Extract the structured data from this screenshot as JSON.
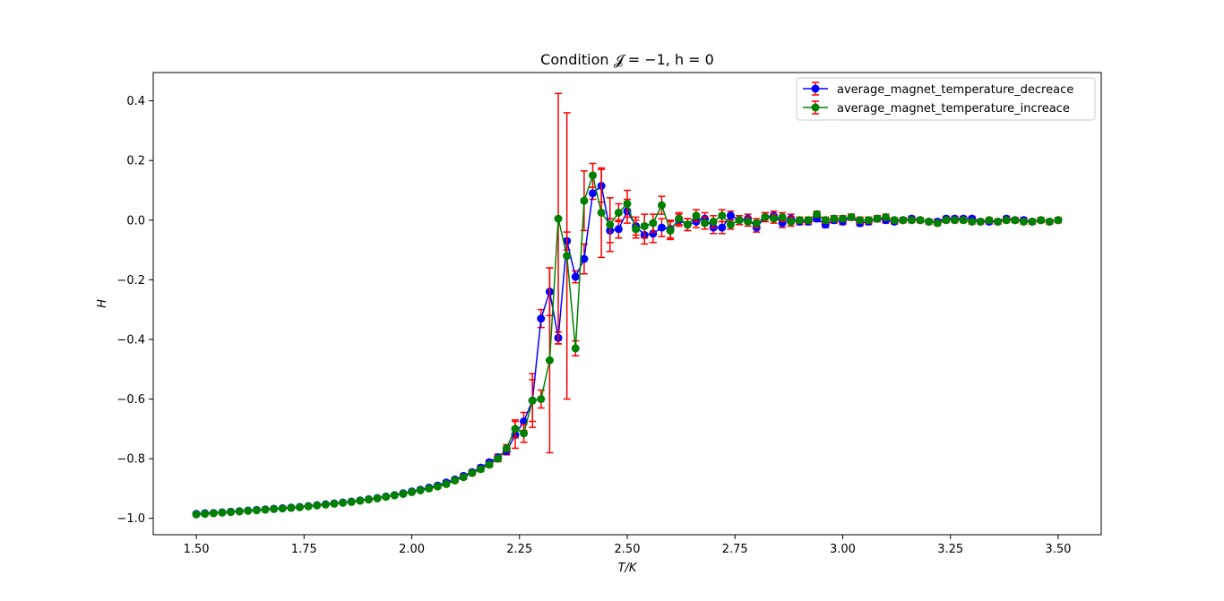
{
  "chart_data": {
    "type": "line",
    "title": "Condition 𝓙 = −1, h = 0",
    "xlabel": "T/K",
    "ylabel": "H",
    "xlim": [
      1.4,
      3.6
    ],
    "ylim": [
      -1.055,
      0.495
    ],
    "xticks": [
      "1.50",
      "1.75",
      "2.00",
      "2.25",
      "2.50",
      "2.75",
      "3.00",
      "3.25",
      "3.50"
    ],
    "xtick_values": [
      1.5,
      1.75,
      2.0,
      2.25,
      2.5,
      2.75,
      3.0,
      3.25,
      3.5
    ],
    "yticks": [
      "−1.0",
      "−0.8",
      "−0.6",
      "−0.4",
      "−0.2",
      "0.0",
      "0.2",
      "0.4"
    ],
    "ytick_values": [
      -1.0,
      -0.8,
      -0.6,
      -0.4,
      -0.2,
      0.0,
      0.2,
      0.4
    ],
    "grid": false,
    "legend_position": "top-right",
    "x": [
      1.5,
      1.52,
      1.54,
      1.56,
      1.58,
      1.6,
      1.62,
      1.64,
      1.66,
      1.68,
      1.7,
      1.72,
      1.74,
      1.76,
      1.78,
      1.8,
      1.82,
      1.84,
      1.86,
      1.88,
      1.9,
      1.92,
      1.94,
      1.96,
      1.98,
      2.0,
      2.02,
      2.04,
      2.06,
      2.08,
      2.1,
      2.12,
      2.14,
      2.16,
      2.18,
      2.2,
      2.22,
      2.24,
      2.26,
      2.28,
      2.3,
      2.32,
      2.34,
      2.36,
      2.38,
      2.4,
      2.42,
      2.44,
      2.46,
      2.48,
      2.5,
      2.52,
      2.54,
      2.56,
      2.58,
      2.6,
      2.62,
      2.64,
      2.66,
      2.68,
      2.7,
      2.72,
      2.74,
      2.76,
      2.78,
      2.8,
      2.82,
      2.84,
      2.86,
      2.88,
      2.9,
      2.92,
      2.94,
      2.96,
      2.98,
      3.0,
      3.02,
      3.04,
      3.06,
      3.08,
      3.1,
      3.12,
      3.14,
      3.16,
      3.18,
      3.2,
      3.22,
      3.24,
      3.26,
      3.28,
      3.3,
      3.32,
      3.34,
      3.36,
      3.38,
      3.4,
      3.42,
      3.44,
      3.46,
      3.48,
      3.5
    ],
    "series": [
      {
        "name": "average_magnet_temperature_decreace",
        "color": "#0000ff",
        "values": [
          -0.985,
          -0.983,
          -0.982,
          -0.98,
          -0.978,
          -0.976,
          -0.974,
          -0.972,
          -0.97,
          -0.968,
          -0.966,
          -0.964,
          -0.962,
          -0.959,
          -0.956,
          -0.953,
          -0.95,
          -0.947,
          -0.944,
          -0.94,
          -0.936,
          -0.932,
          -0.927,
          -0.922,
          -0.916,
          -0.91,
          -0.904,
          -0.897,
          -0.89,
          -0.88,
          -0.87,
          -0.858,
          -0.845,
          -0.83,
          -0.812,
          -0.795,
          -0.775,
          -0.72,
          -0.675,
          -0.605,
          -0.33,
          -0.24,
          -0.395,
          -0.07,
          -0.19,
          -0.13,
          0.09,
          0.115,
          -0.035,
          -0.03,
          0.03,
          -0.02,
          -0.05,
          -0.045,
          -0.025,
          -0.03,
          0.0,
          -0.015,
          -0.005,
          0.005,
          -0.025,
          -0.025,
          0.015,
          0.0,
          0.005,
          -0.025,
          0.01,
          0.015,
          -0.01,
          0.005,
          -0.005,
          -0.005,
          0.005,
          -0.015,
          0.0,
          -0.005,
          0.01,
          -0.01,
          -0.005,
          0.005,
          0.0,
          -0.005,
          0.0,
          0.005,
          0.0,
          -0.005,
          -0.005,
          0.005,
          0.005,
          0.005,
          0.005,
          -0.005,
          -0.005,
          -0.005,
          0.005,
          0.0,
          0.0,
          -0.005,
          0.0,
          -0.005,
          0.0
        ],
        "errors": [
          0.004,
          0.004,
          0.004,
          0.004,
          0.004,
          0.004,
          0.004,
          0.004,
          0.004,
          0.004,
          0.004,
          0.004,
          0.004,
          0.004,
          0.004,
          0.004,
          0.004,
          0.004,
          0.004,
          0.004,
          0.004,
          0.004,
          0.004,
          0.004,
          0.005,
          0.005,
          0.005,
          0.005,
          0.006,
          0.006,
          0.006,
          0.007,
          0.007,
          0.008,
          0.008,
          0.01,
          0.012,
          0.045,
          0.03,
          0.09,
          0.03,
          0.08,
          0.02,
          0.03,
          0.02,
          0.05,
          0.02,
          0.055,
          0.04,
          0.03,
          0.04,
          0.03,
          0.03,
          0.03,
          0.03,
          0.03,
          0.02,
          0.02,
          0.02,
          0.02,
          0.02,
          0.02,
          0.015,
          0.015,
          0.015,
          0.015,
          0.015,
          0.015,
          0.015,
          0.015,
          0.01,
          0.01,
          0.01,
          0.01,
          0.01,
          0.01,
          0.01,
          0.01,
          0.01,
          0.01,
          0.01,
          0.008,
          0.008,
          0.008,
          0.008,
          0.008,
          0.008,
          0.008,
          0.008,
          0.008,
          0.008,
          0.008,
          0.008,
          0.008,
          0.008,
          0.008,
          0.008,
          0.008,
          0.008,
          0.008,
          0.008
        ]
      },
      {
        "name": "average_magnet_temperature_increace",
        "color": "#008000",
        "values": [
          -0.987,
          -0.985,
          -0.983,
          -0.981,
          -0.979,
          -0.977,
          -0.975,
          -0.973,
          -0.971,
          -0.969,
          -0.967,
          -0.965,
          -0.963,
          -0.96,
          -0.957,
          -0.954,
          -0.951,
          -0.948,
          -0.945,
          -0.941,
          -0.937,
          -0.933,
          -0.928,
          -0.923,
          -0.918,
          -0.912,
          -0.906,
          -0.9,
          -0.893,
          -0.885,
          -0.873,
          -0.862,
          -0.848,
          -0.835,
          -0.82,
          -0.8,
          -0.765,
          -0.7,
          -0.715,
          -0.605,
          -0.6,
          -0.47,
          0.005,
          -0.12,
          -0.43,
          0.065,
          0.15,
          0.025,
          -0.015,
          0.025,
          0.055,
          -0.03,
          -0.02,
          -0.01,
          0.05,
          -0.035,
          0.005,
          -0.015,
          0.015,
          -0.01,
          -0.005,
          0.015,
          -0.015,
          0.0,
          -0.005,
          -0.01,
          0.01,
          0.005,
          0.01,
          -0.005,
          0.0,
          0.0,
          0.02,
          0.0,
          0.005,
          0.005,
          0.01,
          0.0,
          0.0,
          0.005,
          0.01,
          0.0,
          0.0,
          0.0,
          0.0,
          -0.005,
          -0.01,
          0.0,
          0.0,
          0.0,
          -0.005,
          -0.005,
          0.0,
          -0.005,
          0.0,
          0.0,
          -0.005,
          -0.005,
          0.0,
          -0.005,
          0.0
        ],
        "errors": [
          0.004,
          0.004,
          0.004,
          0.004,
          0.004,
          0.004,
          0.004,
          0.004,
          0.004,
          0.004,
          0.004,
          0.004,
          0.004,
          0.004,
          0.004,
          0.004,
          0.004,
          0.004,
          0.004,
          0.004,
          0.004,
          0.004,
          0.004,
          0.004,
          0.005,
          0.005,
          0.005,
          0.005,
          0.006,
          0.006,
          0.006,
          0.007,
          0.007,
          0.008,
          0.008,
          0.01,
          0.012,
          0.03,
          0.03,
          0.07,
          0.03,
          0.31,
          0.42,
          0.48,
          0.025,
          0.1,
          0.04,
          0.15,
          0.09,
          0.03,
          0.045,
          0.03,
          0.04,
          0.03,
          0.03,
          0.03,
          0.02,
          0.02,
          0.02,
          0.02,
          0.02,
          0.02,
          0.015,
          0.015,
          0.015,
          0.015,
          0.015,
          0.015,
          0.015,
          0.015,
          0.01,
          0.01,
          0.01,
          0.01,
          0.01,
          0.01,
          0.01,
          0.01,
          0.01,
          0.01,
          0.01,
          0.008,
          0.008,
          0.008,
          0.008,
          0.008,
          0.008,
          0.008,
          0.008,
          0.008,
          0.008,
          0.008,
          0.008,
          0.008,
          0.008,
          0.008,
          0.008,
          0.008,
          0.008,
          0.008,
          0.008
        ]
      }
    ],
    "error_bar_color": "#ff0000"
  }
}
